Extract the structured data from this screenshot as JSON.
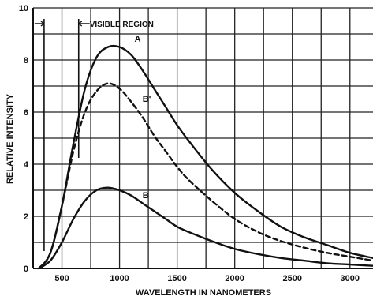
{
  "chart_data": {
    "type": "line",
    "title": "",
    "xlabel": "WAVELENGTH IN NANOMETERS",
    "ylabel": "RELATIVE INTENSITY",
    "xlim": [
      250,
      3200
    ],
    "ylim": [
      0,
      10
    ],
    "x_ticks": [
      500,
      1000,
      1500,
      2000,
      2500,
      3000
    ],
    "y_ticks": [
      0,
      2,
      4,
      6,
      8,
      10
    ],
    "grid": true,
    "visible_region": {
      "label": "VISIBLE REGION",
      "from": 400,
      "to": 700
    },
    "series": [
      {
        "name": "A",
        "style": "solid",
        "x": [
          300,
          400,
          500,
          600,
          700,
          800,
          900,
          1000,
          1100,
          1200,
          1300,
          1400,
          1500,
          1600,
          1800,
          2000,
          2200,
          2400,
          2600,
          2800,
          3000,
          3200
        ],
        "y": [
          0.0,
          0.6,
          2.4,
          4.8,
          6.9,
          8.1,
          8.5,
          8.5,
          8.2,
          7.6,
          6.9,
          6.2,
          5.5,
          4.9,
          3.8,
          2.9,
          2.2,
          1.6,
          1.2,
          0.9,
          0.6,
          0.4
        ]
      },
      {
        "name": "B'",
        "style": "dashed",
        "x": [
          300,
          400,
          500,
          600,
          700,
          800,
          900,
          1000,
          1100,
          1200,
          1300,
          1400,
          1500,
          1600,
          1800,
          2000,
          2200,
          2400,
          2600,
          2800,
          3000,
          3200
        ],
        "y": [
          0.0,
          0.6,
          2.4,
          4.5,
          6.0,
          6.8,
          7.1,
          6.9,
          6.4,
          5.8,
          5.1,
          4.5,
          3.9,
          3.4,
          2.6,
          1.9,
          1.4,
          1.05,
          0.8,
          0.6,
          0.45,
          0.3
        ]
      },
      {
        "name": "B",
        "style": "solid",
        "x": [
          300,
          400,
          500,
          600,
          700,
          800,
          900,
          1000,
          1100,
          1200,
          1300,
          1400,
          1500,
          1600,
          1800,
          2000,
          2200,
          2400,
          2600,
          2800,
          3000,
          3200
        ],
        "y": [
          0.0,
          0.3,
          1.0,
          1.9,
          2.6,
          3.0,
          3.1,
          3.0,
          2.8,
          2.5,
          2.2,
          1.9,
          1.6,
          1.4,
          1.05,
          0.75,
          0.55,
          0.4,
          0.3,
          0.2,
          0.15,
          0.1
        ]
      }
    ],
    "annotations": [
      {
        "text": "A",
        "x": 1130,
        "y": 8.7
      },
      {
        "text": "B'",
        "x": 1200,
        "y": 6.4
      },
      {
        "text": "B",
        "x": 1200,
        "y": 2.7
      }
    ]
  }
}
